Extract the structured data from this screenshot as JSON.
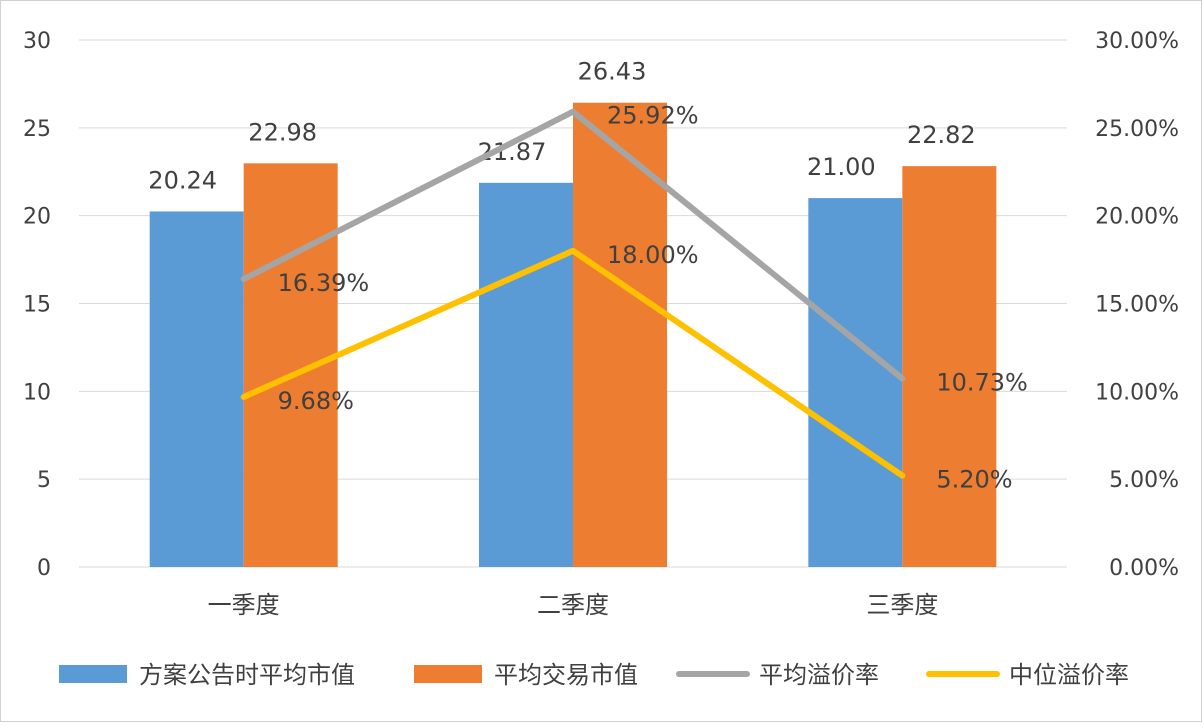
{
  "chart_data": {
    "type": "bar",
    "categories": [
      "一季度",
      "二季度",
      "三季度"
    ],
    "bar_series": [
      {
        "name": "方案公告时平均市值",
        "values": [
          20.24,
          21.87,
          21.0
        ],
        "labels": [
          "20.24",
          "21.87",
          "21.00"
        ],
        "color": "#5b9bd5"
      },
      {
        "name": "平均交易市值",
        "values": [
          22.98,
          26.43,
          22.82
        ],
        "labels": [
          "22.98",
          "26.43",
          "22.82"
        ],
        "color": "#ed7d31"
      }
    ],
    "line_series": [
      {
        "name": "平均溢价率",
        "values": [
          16.39,
          25.92,
          10.73
        ],
        "labels": [
          "16.39%",
          "25.92%",
          "10.73%"
        ],
        "color": "#a5a5a5"
      },
      {
        "name": "中位溢价率",
        "values": [
          9.68,
          18.0,
          5.2
        ],
        "labels": [
          "9.68%",
          "18.00%",
          "5.20%"
        ],
        "color": "#ffc000"
      }
    ],
    "y_left": {
      "min": 0,
      "max": 30,
      "ticks": [
        "0",
        "5",
        "10",
        "15",
        "20",
        "25",
        "30"
      ]
    },
    "y_right": {
      "min": 0,
      "max": 30,
      "ticks": [
        "0.00%",
        "5.00%",
        "10.00%",
        "15.00%",
        "20.00%",
        "25.00%",
        "30.00%"
      ]
    },
    "grid": true,
    "legend_position": "bottom"
  }
}
